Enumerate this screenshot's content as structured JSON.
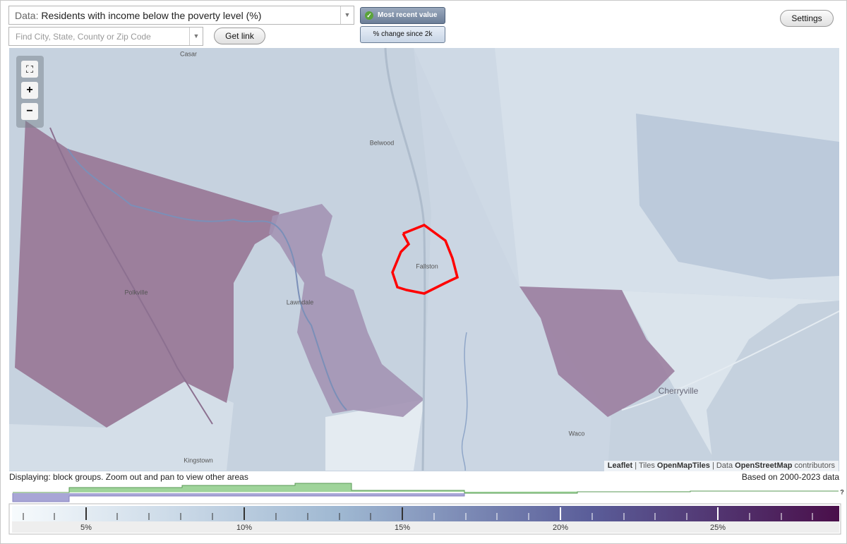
{
  "header": {
    "data_label": "Data:",
    "data_value": "Residents with income below the poverty level (%)",
    "search_placeholder": "Find City, State, County or Zip Code",
    "get_link": "Get link",
    "most_recent": "Most recent value",
    "change_since": "% change since 2k",
    "settings": "Settings"
  },
  "map": {
    "zoom_in": "+",
    "zoom_out": "−",
    "places": [
      "Casar",
      "Belwood",
      "Fallston",
      "Polkville",
      "Lawndale",
      "Cherryville",
      "Waco",
      "Kingstown"
    ],
    "attribution": {
      "leaflet": "Leaflet",
      "sep1": "|",
      "tiles": "Tiles",
      "tiles_source": "OpenMapTiles",
      "sep2": "| Data",
      "data_source": "OpenStreetMap",
      "contributors": "contributors"
    }
  },
  "footer": {
    "displaying": "Displaying: block groups. Zoom out and pan to view other areas",
    "based_on": "Based on 2000-2023 data"
  },
  "legend": {
    "labels": [
      "5%",
      "10%",
      "15%",
      "20%",
      "25%"
    ],
    "unknown": "?"
  }
}
